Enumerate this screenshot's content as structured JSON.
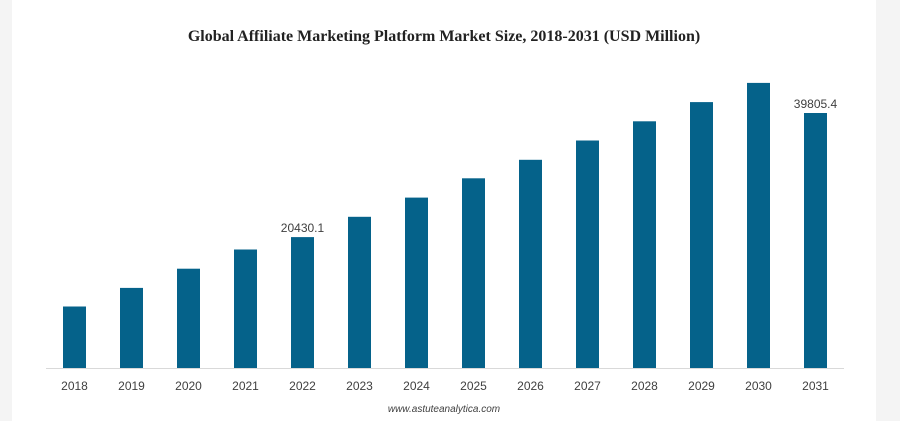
{
  "chart_data": {
    "type": "bar",
    "title": "Global Affiliate Marketing Platform Market Size, 2018-2031 (USD Million)",
    "xlabel": "",
    "ylabel": "",
    "categories": [
      "2018",
      "2019",
      "2020",
      "2021",
      "2022",
      "2023",
      "2024",
      "2025",
      "2026",
      "2027",
      "2028",
      "2029",
      "2030",
      "2031"
    ],
    "values": [
      9600,
      12500,
      15500,
      18500,
      20430.1,
      23600,
      26600,
      29600,
      32500,
      35500,
      38500,
      41500,
      44500,
      39805.4
    ],
    "data_labels": [
      {
        "index": 4,
        "text": "20430.1"
      },
      {
        "index": 13,
        "text": "39805.4"
      }
    ],
    "ylim": [
      0,
      54000
    ],
    "grid": false,
    "legend": "none",
    "colors": {
      "bar": "#05628a",
      "axis": "#d9d9d9"
    }
  },
  "watermark": "www.astuteanalytica.com"
}
